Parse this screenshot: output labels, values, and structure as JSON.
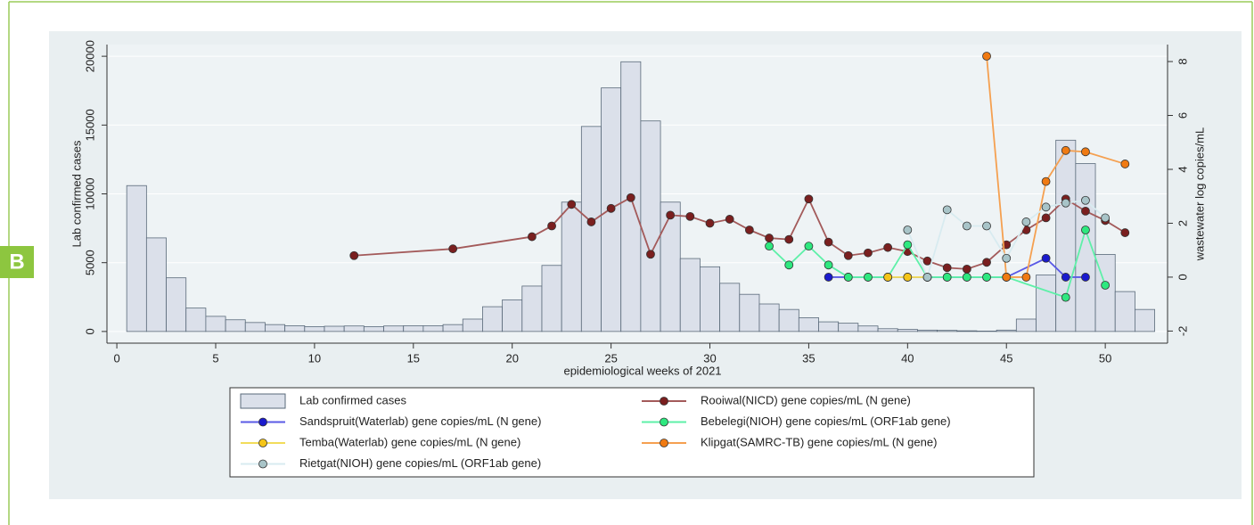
{
  "panel_label": "B",
  "chart_data": {
    "type": "bar",
    "x_label": "epidemiological weeks of 2021",
    "y_label": "Lab  confirmed cases",
    "y2_label": "wastewater log copies/mL",
    "xlim": [
      -0.5,
      53.15
    ],
    "xticks": [
      0,
      5,
      10,
      15,
      20,
      25,
      30,
      35,
      40,
      45,
      50
    ],
    "ylim": [
      -850,
      20850
    ],
    "yticks": [
      0,
      5000,
      10000,
      15000,
      20000
    ],
    "y2lim": [
      -2.45,
      8.63
    ],
    "y2ticks": [
      -2,
      0,
      2,
      4,
      6,
      8
    ],
    "grid": true,
    "series": [
      {
        "name": "Lab  confirmed cases",
        "type": "bar",
        "color": "#dbe0ea",
        "x": [
          1,
          2,
          3,
          4,
          5,
          6,
          7,
          8,
          9,
          10,
          11,
          12,
          13,
          14,
          15,
          16,
          17,
          18,
          19,
          20,
          21,
          22,
          23,
          24,
          25,
          26,
          27,
          28,
          29,
          30,
          31,
          32,
          33,
          34,
          35,
          36,
          37,
          38,
          39,
          40,
          41,
          42,
          43,
          44,
          45,
          46,
          47,
          48,
          49,
          50,
          51,
          52
        ],
        "values": [
          10600,
          6800,
          3900,
          1700,
          1100,
          850,
          650,
          500,
          420,
          350,
          380,
          400,
          350,
          400,
          420,
          420,
          500,
          900,
          1800,
          2300,
          3300,
          4800,
          9400,
          14900,
          17700,
          19600,
          15300,
          9400,
          5300,
          4700,
          3500,
          2700,
          2000,
          1600,
          1000,
          700,
          600,
          400,
          200,
          150,
          100,
          80,
          50,
          30,
          100,
          900,
          4100,
          13900,
          12200,
          5600,
          2900,
          1600
        ]
      },
      {
        "name": "Rooiwal(NICD) gene copies/mL (N gene)",
        "type": "line",
        "axis": "y2",
        "color": "#a35a5a",
        "marker": "#7a1f1f",
        "x": [
          12,
          17,
          21,
          22,
          23,
          24,
          25,
          26,
          27,
          28,
          29,
          30,
          31,
          32,
          33,
          34,
          35,
          36,
          37,
          38,
          39,
          40,
          41,
          42,
          43,
          44,
          45,
          46,
          47,
          48,
          49,
          50,
          51
        ],
        "values": [
          0.8,
          1.05,
          1.5,
          1.9,
          2.7,
          2.05,
          2.55,
          2.95,
          0.85,
          2.3,
          2.25,
          2,
          2.15,
          1.75,
          1.45,
          1.4,
          2.9,
          1.3,
          0.8,
          0.9,
          1.1,
          0.95,
          0.6,
          0.35,
          0.3,
          0.55,
          1.2,
          1.75,
          2.2,
          2.9,
          2.45,
          2.1,
          1.65
        ]
      },
      {
        "name": "Sandspruit(Waterlab) gene copies/mL (N gene)",
        "type": "line",
        "axis": "y2",
        "color": "#5a5ae6",
        "marker": "#1a1acd",
        "x": [
          36,
          37,
          38,
          39,
          40,
          41,
          42,
          43,
          44,
          45,
          47,
          48,
          49
        ],
        "values": [
          0,
          0,
          0,
          0,
          0,
          0,
          0,
          0,
          0,
          0,
          0.7,
          0,
          0
        ]
      },
      {
        "name": "Bebelegi(NIOH) gene copies/mL (ORF1ab gene)",
        "type": "line",
        "axis": "y2",
        "color": "#5ef0a8",
        "marker": "#2ee87f",
        "x": [
          33,
          34,
          35,
          36,
          37,
          38,
          39,
          40,
          41,
          42,
          43,
          44,
          45,
          48,
          49,
          50
        ],
        "values": [
          1.15,
          0.45,
          1.15,
          0.45,
          0,
          0,
          0,
          1.2,
          0,
          0,
          0,
          0,
          0,
          -0.75,
          1.75,
          -0.3
        ]
      },
      {
        "name": "Temba(Waterlab) gene copies/mL (N gene)",
        "type": "line",
        "axis": "y2",
        "color": "#f2dc5a",
        "marker": "#f5c518",
        "x": [
          39,
          40,
          41
        ],
        "values": [
          0,
          0,
          0
        ]
      },
      {
        "name": "Klipgat(SAMRC-TB) gene copies/mL (N gene)",
        "type": "line",
        "axis": "y2",
        "color": "#f5a050",
        "marker": "#f07a12",
        "x": [
          44,
          45,
          46,
          47,
          48,
          49,
          51
        ],
        "values": [
          8.2,
          0,
          0,
          3.55,
          4.7,
          4.65,
          4.2
        ]
      },
      {
        "name": "Rietgat(NIOH) gene copies/mL (ORF1ab gene)",
        "type": "line",
        "axis": "y2",
        "color": "#d8ebf0",
        "marker": "#a8c4c8",
        "x": [
          40,
          41,
          42,
          43,
          44,
          45,
          46,
          47,
          48,
          49,
          50
        ],
        "values": [
          1.75,
          0,
          2.5,
          1.9,
          1.9,
          0.7,
          2.05,
          2.6,
          2.75,
          2.85,
          2.2
        ]
      }
    ]
  }
}
